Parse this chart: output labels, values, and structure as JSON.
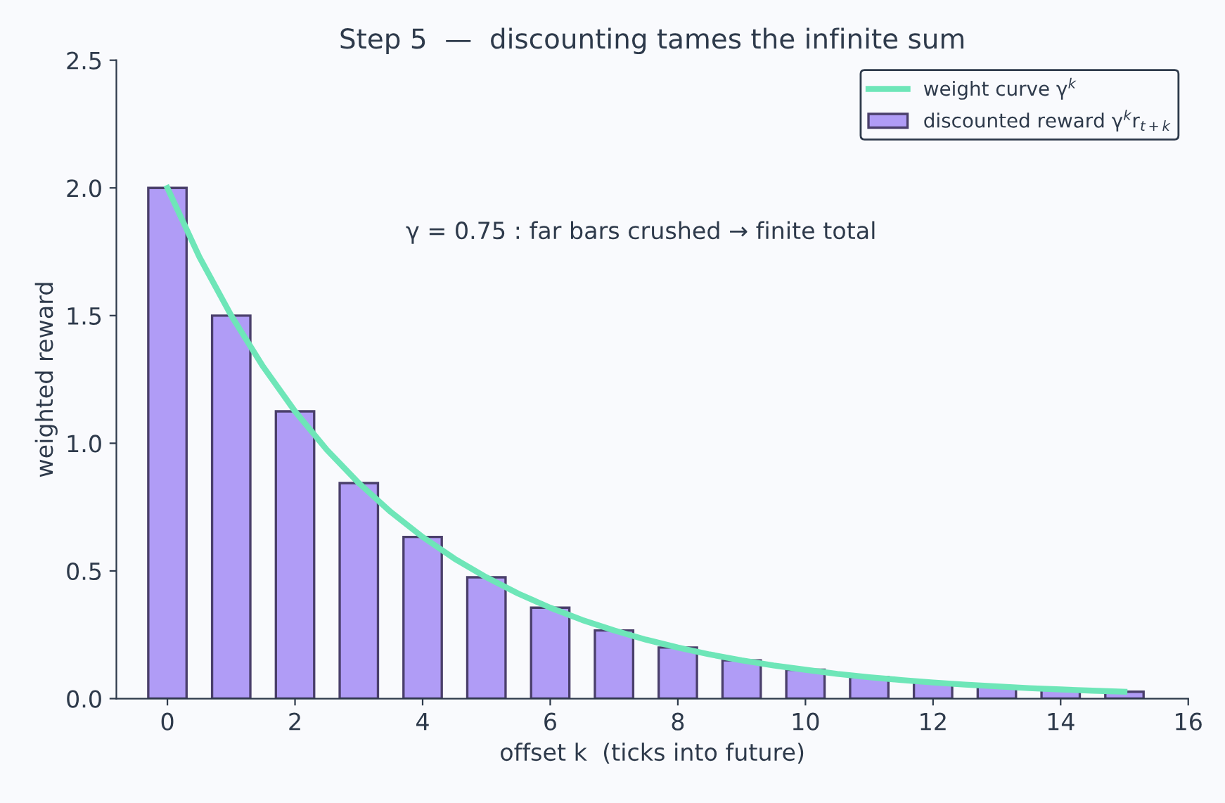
{
  "chart_data": {
    "type": "bar",
    "title": "Step 5  —  discounting tames the infinite sum",
    "xlabel": "offset k  (ticks into future)",
    "ylabel": "weighted reward",
    "series": [
      {
        "name": "discounted reward γ$^{k}$r$_{t+k}$",
        "color": "#b09cf6",
        "x": [
          0,
          1,
          2,
          3,
          4,
          5,
          6,
          7,
          8,
          9,
          10,
          11,
          12,
          13,
          14,
          15
        ],
        "values": [
          2.0,
          1.5,
          1.125,
          0.844,
          0.633,
          0.475,
          0.356,
          0.267,
          0.2,
          0.15,
          0.113,
          0.084,
          0.063,
          0.048,
          0.036,
          0.027
        ]
      },
      {
        "type": "line",
        "name": "weight curve γ$^{k}$",
        "color": "#6ee6b8",
        "x": [
          0,
          0.5,
          1,
          1.5,
          2,
          2.5,
          3,
          3.5,
          4,
          4.5,
          5,
          5.5,
          6,
          6.5,
          7,
          7.5,
          8,
          8.5,
          9,
          9.5,
          10,
          10.5,
          11,
          11.5,
          12,
          12.5,
          13,
          13.5,
          14,
          14.5,
          15
        ],
        "values": [
          2.0,
          1.73,
          1.5,
          1.3,
          1.125,
          0.974,
          0.844,
          0.731,
          0.633,
          0.548,
          0.475,
          0.411,
          0.356,
          0.308,
          0.267,
          0.231,
          0.2,
          0.173,
          0.15,
          0.13,
          0.113,
          0.097,
          0.084,
          0.073,
          0.063,
          0.055,
          0.048,
          0.041,
          0.036,
          0.031,
          0.027
        ]
      }
    ],
    "xlim": [
      -0.8,
      16
    ],
    "xticks": [
      0,
      2,
      4,
      6,
      8,
      10,
      12,
      14,
      16
    ],
    "ylim": [
      0,
      2.5
    ],
    "yticks": [
      {
        "value": 0,
        "label": "0.0"
      },
      0.5,
      {
        "value": 1,
        "label": "1.0"
      },
      1.5,
      {
        "value": 2,
        "label": "2.0"
      },
      2.5
    ],
    "annotations": [
      "γ = 0.75 : far bars crushed → finite total"
    ],
    "legend": "top right",
    "grid": false
  }
}
